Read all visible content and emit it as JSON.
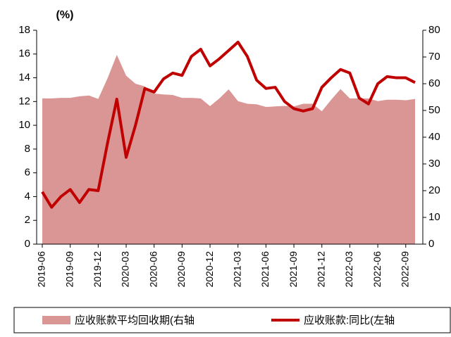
{
  "chart_data": {
    "type": "line",
    "y_unit_label": "(%)",
    "categories": [
      "2019-06",
      null,
      null,
      "2019-09",
      null,
      null,
      "2019-12",
      null,
      null,
      "2020-03",
      null,
      null,
      "2020-06",
      null,
      null,
      "2020-09",
      null,
      null,
      "2020-12",
      null,
      null,
      "2021-03",
      null,
      null,
      "2021-06",
      null,
      null,
      "2021-09",
      null,
      null,
      "2021-12",
      null,
      null,
      "2022-03",
      null,
      null,
      "2022-06",
      null,
      null,
      "2022-09",
      null
    ],
    "series": [
      {
        "name": "应收账款平均回收期(右轴",
        "type": "area",
        "axis": "y2",
        "color": "#d99694",
        "values": [
          54.5,
          54.5,
          54.7,
          54.7,
          55.3,
          55.6,
          54.3,
          62,
          70.8,
          63,
          60,
          59,
          56.3,
          56,
          55.8,
          54.7,
          54.7,
          54.5,
          51.6,
          54.5,
          57.9,
          53.5,
          52.5,
          52.3,
          51.3,
          51.5,
          51.7,
          51.5,
          52.5,
          52.5,
          49.7,
          54,
          58,
          54.5,
          54.5,
          54.5,
          53.5,
          54,
          54,
          53.8,
          54.3
        ]
      },
      {
        "name": "应收账款:同比(左轴",
        "type": "line",
        "color": "#c00000",
        "values": [
          4.4,
          3.1,
          4.0,
          4.6,
          3.5,
          4.6,
          4.5,
          8.5,
          12.2,
          7.3,
          10.0,
          13.1,
          12.8,
          13.9,
          14.4,
          14.2,
          15.8,
          16.4,
          15.0,
          15.6,
          16.3,
          17.0,
          15.8,
          13.8,
          13.1,
          13.2,
          12.0,
          11.4,
          11.2,
          11.4,
          13.2,
          14.0,
          14.7,
          14.4,
          12.3,
          11.8,
          13.5,
          14.1,
          14.0,
          14.0,
          13.6
        ]
      }
    ],
    "ylim": [
      0,
      18
    ],
    "yticks": [
      0,
      2,
      4,
      6,
      8,
      10,
      12,
      14,
      16,
      18
    ],
    "y2lim": [
      0,
      80
    ],
    "y2ticks": [
      0,
      10,
      20,
      30,
      40,
      50,
      60,
      70,
      80
    ],
    "legend": "bottom"
  }
}
